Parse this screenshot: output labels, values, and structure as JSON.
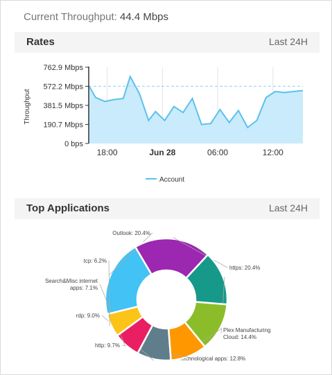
{
  "throughput": {
    "label": "Current Throughput:",
    "value": "44.4 Mbps"
  },
  "rates": {
    "title": "Rates",
    "range": "Last 24H"
  },
  "top_apps": {
    "title": "Top Applications",
    "range": "Last 24H"
  },
  "colors": {
    "line": "#5bc0eb",
    "area": "#c9ebfb",
    "refline": "#9fd9f2",
    "slices": {
      "Outlook": "#42c2f5",
      "https": "#9c27b0",
      "Plex Manufacturing Cloud": "#17998a",
      "Technological apps": "#8bbd2a",
      "http": "#ff9800",
      "rdp": "#607d8b",
      "Search&Misc internet apps": "#e91e63",
      "tcp": "#fcc419"
    }
  },
  "chart_data": [
    {
      "type": "area",
      "title": "",
      "xlabel": "",
      "ylabel": "Throughput",
      "ylim": [
        0,
        762.9
      ],
      "yticks": [
        "0 bps",
        "190.7 Mbps",
        "381.5 Mbps",
        "572.2 Mbps",
        "762.9 Mbps"
      ],
      "xticks": [
        {
          "label": "18:00",
          "hour": 18,
          "bold": false
        },
        {
          "label": "Jun 28",
          "hour": 24,
          "bold": true
        },
        {
          "label": "06:00",
          "hour": 30,
          "bold": false
        },
        {
          "label": "12:00",
          "hour": 36,
          "bold": false
        }
      ],
      "reference_line": 572.2,
      "grid": "vertical",
      "legend": "bottom",
      "series": [
        {
          "name": "Account",
          "x": [
            16,
            16.75,
            17.75,
            18.75,
            19.75,
            20.5,
            21.5,
            22.5,
            23.25,
            24.25,
            25.25,
            26.25,
            27.25,
            28.25,
            29.25,
            30.25,
            31.25,
            32.25,
            33.25,
            34.25,
            35.25,
            36.25,
            37.25,
            38.25,
            39.25
          ],
          "y": [
            580,
            460,
            420,
            440,
            450,
            670,
            500,
            230,
            320,
            230,
            370,
            310,
            450,
            190,
            200,
            340,
            210,
            330,
            160,
            230,
            460,
            520,
            510,
            520,
            530
          ]
        }
      ]
    },
    {
      "type": "pie",
      "title": "",
      "donut": true,
      "legend": "none",
      "labels": [
        "Outlook",
        "https",
        "Plex Manufacturing Cloud",
        "Technological apps",
        "http",
        "rdp",
        "Search&Misc internet apps",
        "tcp"
      ],
      "values": [
        20.4,
        20.4,
        14.4,
        12.8,
        9.7,
        9.0,
        7.1,
        6.2
      ],
      "slice_labels": [
        [
          "Outlook: 20.4%"
        ],
        [
          "https: 20.4%"
        ],
        [
          "Plex Manufacturing",
          "Cloud: 14.4%"
        ],
        [
          "Technological apps: 12.8%"
        ],
        [
          "http: 9.7%"
        ],
        [
          "rdp: 9.0%"
        ],
        [
          "Search&Misc internet",
          "apps: 7.1%"
        ],
        [
          "tcp: 6.2%"
        ]
      ]
    }
  ]
}
